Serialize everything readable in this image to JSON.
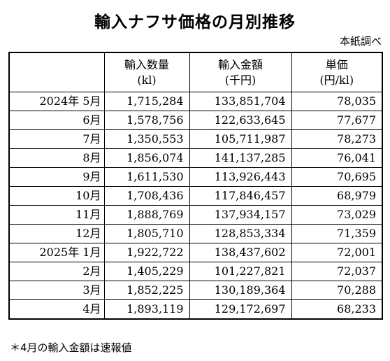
{
  "title": "輸入ナフサ価格の月別推移",
  "source": "本紙調べ",
  "columns": [
    {
      "label": "輸入数量",
      "unit": "(kl)"
    },
    {
      "label": "輸入金額",
      "unit": "(千円)"
    },
    {
      "label": "単価",
      "unit": "(円/kl)"
    }
  ],
  "rows": [
    {
      "period": "2024年 5月",
      "quantity": "1,715,284",
      "amount": "133,851,704",
      "unit_price": "78,035"
    },
    {
      "period": "6月",
      "quantity": "1,578,756",
      "amount": "122,633,645",
      "unit_price": "77,677"
    },
    {
      "period": "7月",
      "quantity": "1,350,553",
      "amount": "105,711,987",
      "unit_price": "78,273"
    },
    {
      "period": "8月",
      "quantity": "1,856,074",
      "amount": "141,137,285",
      "unit_price": "76,041"
    },
    {
      "period": "9月",
      "quantity": "1,611,530",
      "amount": "113,926,443",
      "unit_price": "70,695"
    },
    {
      "period": "10月",
      "quantity": "1,708,436",
      "amount": "117,846,457",
      "unit_price": "68,979"
    },
    {
      "period": "11月",
      "quantity": "1,888,769",
      "amount": "137,934,157",
      "unit_price": "73,029"
    },
    {
      "period": "12月",
      "quantity": "1,805,710",
      "amount": "128,853,334",
      "unit_price": "71,359"
    },
    {
      "period": "2025年 1月",
      "quantity": "1,922,722",
      "amount": "138,437,602",
      "unit_price": "72,001"
    },
    {
      "period": "2月",
      "quantity": "1,405,229",
      "amount": "101,227,821",
      "unit_price": "72,037"
    },
    {
      "period": "3月",
      "quantity": "1,852,225",
      "amount": "130,189,364",
      "unit_price": "70,288"
    },
    {
      "period": "4月",
      "quantity": "1,893,119",
      "amount": "129,172,697",
      "unit_price": "68,233"
    }
  ],
  "note": "＊4月の輸入金額は速報値"
}
